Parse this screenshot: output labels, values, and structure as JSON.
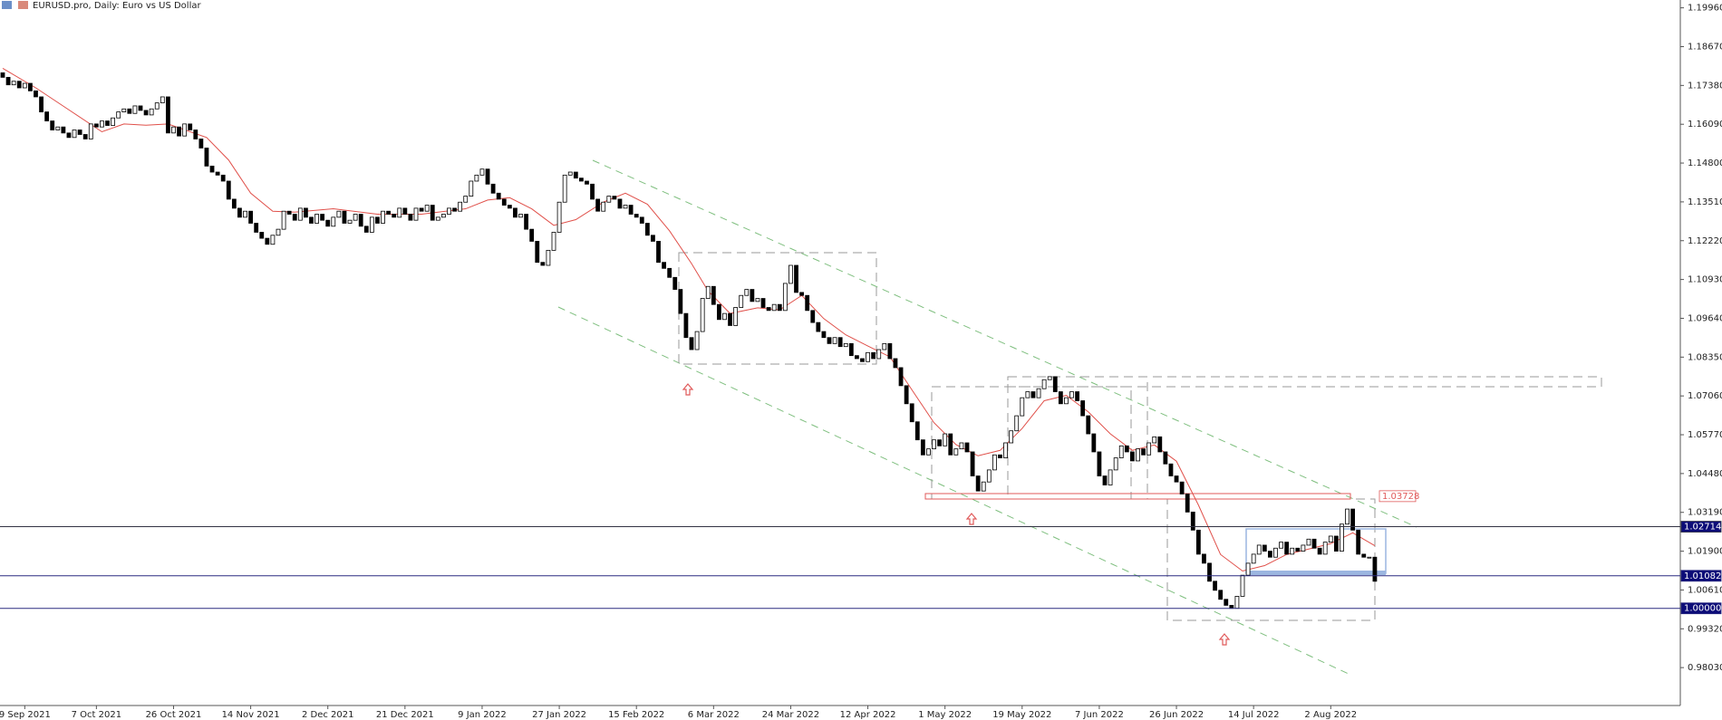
{
  "chart_data": {
    "type": "candlestick",
    "title": "EURUSD.pro, Daily:  Euro vs US Dollar",
    "categories": [
      null,
      null,
      null,
      null,
      "9 Sep 2021",
      null,
      null,
      null,
      null,
      null,
      null,
      null,
      null,
      null,
      null,
      null,
      null,
      "7 Oct 2021",
      null,
      null,
      null,
      null,
      null,
      null,
      null,
      null,
      null,
      null,
      null,
      null,
      null,
      "26 Oct 2021",
      null,
      null,
      null,
      null,
      null,
      null,
      null,
      null,
      null,
      null,
      null,
      null,
      null,
      "14 Nov 2021",
      null,
      null,
      null,
      null,
      null,
      null,
      null,
      null,
      null,
      null,
      null,
      null,
      null,
      "2 Dec 2021",
      null,
      null,
      null,
      null,
      null,
      null,
      null,
      null,
      null,
      null,
      null,
      null,
      null,
      "21 Dec 2021",
      null,
      null,
      null,
      null,
      null,
      null,
      null,
      null,
      null,
      null,
      null,
      null,
      null,
      "9 Jan 2022",
      null,
      null,
      null,
      null,
      null,
      null,
      null,
      null,
      null,
      null,
      null,
      null,
      null,
      "27 Jan 2022",
      null,
      null,
      null,
      null,
      null,
      null,
      null,
      null,
      null,
      null,
      null,
      null,
      null,
      "15 Feb 2022",
      null,
      null,
      null,
      null,
      null,
      null,
      null,
      null,
      null,
      null,
      null,
      null,
      null,
      "6 Mar 2022",
      null,
      null,
      null,
      null,
      null,
      null,
      null,
      null,
      null,
      null,
      null,
      null,
      null,
      "24 Mar 2022",
      null,
      null,
      null,
      null,
      null,
      null,
      null,
      null,
      null,
      null,
      null,
      null,
      null,
      "12 Apr 2022",
      null,
      null,
      null,
      null,
      null,
      null,
      null,
      null,
      null,
      null,
      null,
      null,
      null,
      "1 May 2022",
      null,
      null,
      null,
      null,
      null,
      null,
      null,
      null,
      null,
      null,
      null,
      null,
      null,
      "19 May 2022",
      null,
      null,
      null,
      null,
      null,
      null,
      null,
      null,
      null,
      null,
      null,
      null,
      null,
      "7 Jun 2022",
      null,
      null,
      null,
      null,
      null,
      null,
      null,
      null,
      null,
      null,
      null,
      null,
      null,
      "26 Jun 2022",
      null,
      null,
      null,
      null,
      null,
      null,
      null,
      null,
      null,
      null,
      null,
      null,
      null,
      "14 Jul 2022",
      null,
      null,
      null,
      null,
      null,
      null,
      null,
      null,
      null,
      null,
      null,
      null,
      null,
      "2 Aug 2022",
      null,
      null,
      null,
      null,
      null,
      null,
      null,
      null
    ],
    "open": [
      1.178,
      1.1765,
      1.174,
      1.1752,
      1.173,
      1.1745,
      1.172,
      1.17,
      1.165,
      1.162,
      1.159,
      1.16,
      1.158,
      1.1565,
      1.159,
      1.1575,
      1.156,
      1.161,
      1.16,
      1.162,
      1.1605,
      1.163,
      1.165,
      1.166,
      1.1645,
      1.167,
      1.1655,
      1.164,
      1.166,
      1.168,
      1.17,
      1.158,
      1.16,
      1.157,
      1.161,
      1.159,
      1.156,
      1.153,
      1.147,
      1.145,
      1.144,
      1.142,
      1.136,
      1.133,
      1.13,
      1.132,
      1.128,
      1.125,
      1.123,
      1.121,
      1.124,
      1.126,
      1.132,
      1.131,
      1.129,
      1.133,
      1.13,
      1.128,
      1.131,
      1.129,
      1.127,
      1.13,
      1.132,
      1.128,
      1.129,
      1.131,
      1.127,
      1.125,
      1.13,
      1.128,
      1.132,
      1.131,
      1.13,
      1.133,
      1.131,
      1.129,
      1.133,
      1.132,
      1.134,
      1.129,
      1.13,
      1.131,
      1.133,
      1.132,
      1.135,
      1.137,
      1.142,
      1.144,
      1.146,
      1.141,
      1.138,
      1.136,
      1.134,
      1.133,
      1.13,
      1.131,
      1.126,
      1.122,
      1.115,
      1.114,
      1.119,
      1.125,
      1.135,
      1.144,
      1.145,
      1.143,
      1.142,
      1.141,
      1.136,
      1.132,
      1.135,
      1.137,
      1.136,
      1.133,
      1.134,
      1.131,
      1.13,
      1.128,
      1.124,
      1.122,
      1.115,
      1.113,
      1.11,
      1.106,
      1.098,
      1.09,
      1.086,
      1.092,
      1.103,
      1.107,
      1.101,
      1.096,
      1.098,
      1.094,
      1.1,
      1.104,
      1.106,
      1.102,
      1.103,
      1.1,
      1.099,
      1.101,
      1.099,
      1.108,
      1.114,
      1.105,
      1.104,
      1.099,
      1.095,
      1.092,
      1.09,
      1.088,
      1.09,
      1.087,
      1.088,
      1.084,
      1.083,
      1.082,
      1.085,
      1.083,
      1.086,
      1.088,
      1.083,
      1.08,
      1.074,
      1.068,
      1.062,
      1.056,
      1.051,
      1.053,
      1.056,
      1.054,
      1.058,
      1.051,
      1.053,
      1.055,
      1.052,
      1.044,
      1.039,
      1.042,
      1.046,
      1.051,
      1.05,
      1.055,
      1.059,
      1.064,
      1.07,
      1.072,
      1.07,
      1.073,
      1.076,
      1.077,
      1.072,
      1.068,
      1.07,
      1.072,
      1.069,
      1.064,
      1.058,
      1.052,
      1.044,
      1.041,
      1.046,
      1.05,
      1.054,
      1.052,
      1.049,
      1.053,
      1.051,
      1.055,
      1.057,
      1.052,
      1.048,
      1.044,
      1.042,
      1.038,
      1.032,
      1.026,
      1.018,
      1.015,
      1.009,
      1.006,
      1.003,
      1.001,
      1.0,
      1.004,
      1.011,
      1.015,
      1.018,
      1.021,
      1.019,
      1.017,
      1.02,
      1.022,
      1.018,
      1.02,
      1.019,
      1.021,
      1.023,
      1.02,
      1.018,
      1.022,
      1.024,
      1.019,
      1.028,
      1.033,
      1.026,
      1.018,
      1.017,
      1.017
    ],
    "close": [
      1.1765,
      1.174,
      1.1752,
      1.173,
      1.1745,
      1.172,
      1.17,
      1.165,
      1.162,
      1.159,
      1.16,
      1.158,
      1.1565,
      1.159,
      1.1575,
      1.156,
      1.161,
      1.16,
      1.162,
      1.1605,
      1.163,
      1.165,
      1.166,
      1.1645,
      1.167,
      1.1655,
      1.164,
      1.166,
      1.168,
      1.17,
      1.158,
      1.16,
      1.157,
      1.161,
      1.159,
      1.156,
      1.153,
      1.147,
      1.145,
      1.144,
      1.142,
      1.136,
      1.133,
      1.13,
      1.132,
      1.128,
      1.125,
      1.123,
      1.121,
      1.124,
      1.126,
      1.132,
      1.131,
      1.129,
      1.133,
      1.13,
      1.128,
      1.131,
      1.129,
      1.127,
      1.13,
      1.132,
      1.128,
      1.129,
      1.131,
      1.127,
      1.125,
      1.13,
      1.128,
      1.132,
      1.131,
      1.13,
      1.133,
      1.131,
      1.129,
      1.133,
      1.132,
      1.134,
      1.129,
      1.13,
      1.131,
      1.133,
      1.132,
      1.135,
      1.137,
      1.142,
      1.144,
      1.146,
      1.141,
      1.138,
      1.136,
      1.134,
      1.133,
      1.13,
      1.131,
      1.126,
      1.122,
      1.115,
      1.114,
      1.119,
      1.125,
      1.135,
      1.144,
      1.145,
      1.143,
      1.142,
      1.141,
      1.136,
      1.132,
      1.135,
      1.137,
      1.136,
      1.133,
      1.134,
      1.131,
      1.13,
      1.128,
      1.124,
      1.122,
      1.115,
      1.113,
      1.11,
      1.106,
      1.098,
      1.09,
      1.086,
      1.092,
      1.103,
      1.107,
      1.101,
      1.096,
      1.098,
      1.094,
      1.1,
      1.104,
      1.106,
      1.102,
      1.103,
      1.1,
      1.099,
      1.101,
      1.099,
      1.108,
      1.114,
      1.105,
      1.104,
      1.099,
      1.095,
      1.092,
      1.09,
      1.088,
      1.09,
      1.087,
      1.088,
      1.084,
      1.083,
      1.082,
      1.085,
      1.083,
      1.086,
      1.088,
      1.083,
      1.08,
      1.074,
      1.068,
      1.062,
      1.056,
      1.051,
      1.053,
      1.056,
      1.054,
      1.058,
      1.051,
      1.053,
      1.055,
      1.052,
      1.044,
      1.039,
      1.042,
      1.046,
      1.051,
      1.05,
      1.055,
      1.059,
      1.064,
      1.07,
      1.072,
      1.07,
      1.073,
      1.076,
      1.077,
      1.072,
      1.068,
      1.07,
      1.072,
      1.069,
      1.064,
      1.058,
      1.052,
      1.044,
      1.041,
      1.046,
      1.05,
      1.054,
      1.052,
      1.049,
      1.053,
      1.051,
      1.055,
      1.057,
      1.052,
      1.048,
      1.044,
      1.042,
      1.038,
      1.032,
      1.026,
      1.018,
      1.015,
      1.009,
      1.006,
      1.003,
      1.001,
      1.0,
      1.004,
      1.011,
      1.015,
      1.018,
      1.021,
      1.019,
      1.017,
      1.02,
      1.022,
      1.018,
      1.02,
      1.019,
      1.021,
      1.023,
      1.02,
      1.018,
      1.022,
      1.024,
      1.019,
      1.028,
      1.033,
      1.026,
      1.018,
      1.017,
      1.017,
      1.009
    ],
    "up_color": "#ffffff",
    "down_color": "#000000",
    "ma": {
      "color": "#e0504a",
      "x": [
        0,
        6,
        12,
        18,
        22,
        26,
        30,
        37,
        41,
        45,
        49,
        53,
        60,
        68,
        76,
        84,
        88,
        92,
        96,
        100,
        104,
        109,
        113,
        117,
        121,
        125,
        128,
        132,
        137,
        141,
        145,
        149,
        153,
        157,
        161,
        165,
        169,
        173,
        177,
        181,
        185,
        189,
        193,
        197,
        201,
        205,
        209,
        213,
        217,
        221,
        225,
        229,
        233,
        237,
        241,
        245,
        249
      ],
      "values": [
        1.1795,
        1.173,
        1.1657,
        1.1584,
        1.161,
        1.1606,
        1.161,
        1.1565,
        1.149,
        1.138,
        1.132,
        1.1317,
        1.1328,
        1.131,
        1.131,
        1.1328,
        1.1357,
        1.1365,
        1.1328,
        1.1273,
        1.1292,
        1.135,
        1.138,
        1.1343,
        1.1255,
        1.1146,
        1.1055,
        1.098,
        1.0999,
        1.0992,
        1.104,
        1.0963,
        1.0909,
        1.0872,
        1.0836,
        1.0726,
        1.0617,
        1.0544,
        1.0507,
        1.0525,
        1.0598,
        1.069,
        1.0708,
        1.0653,
        1.058,
        1.0525,
        1.0543,
        1.0489,
        1.0343,
        1.0179,
        1.0124,
        1.0142,
        1.0179,
        1.0197,
        1.0215,
        1.0251,
        1.0208
      ]
    },
    "levels": [
      {
        "value": 1.03728,
        "color": "#e05a5a",
        "full_width": false,
        "label_at": "chart",
        "label_bg": "#ffffff",
        "label_color": "#e05a5a"
      },
      {
        "value": 1.02714,
        "color": "#333344",
        "full_width": true,
        "label_at": "axis",
        "label_bg": "#0c0c78",
        "label_color": "#ffffff"
      },
      {
        "value": 1.01082,
        "color": "#2a2a80",
        "full_width": true,
        "label_at": "axis",
        "label_bg": "#0c0c78",
        "label_color": "#ffffff"
      },
      {
        "value": 1,
        "label": "1.00000",
        "color": "#2a2a80",
        "full_width": true,
        "label_at": "axis",
        "label_bg": "#0c0c78",
        "label_color": "#ffffff"
      }
    ],
    "ylim": [
      0.9677,
      1.2022
    ],
    "yticks": [
      {
        "value": 1.1996,
        "label": "1.19960"
      },
      {
        "value": 1.1867,
        "label": "1.18670"
      },
      {
        "value": 1.1738,
        "label": "1.17380"
      },
      {
        "value": 1.1609,
        "label": "1.16090"
      },
      {
        "value": 1.148,
        "label": "1.14800"
      },
      {
        "value": 1.1351,
        "label": "1.13510"
      },
      {
        "value": 1.1222,
        "label": "1.12220"
      },
      {
        "value": 1.1093,
        "label": "1.10930"
      },
      {
        "value": 1.0964,
        "label": "1.09640"
      },
      {
        "value": 1.0835,
        "label": "1.08350"
      },
      {
        "value": 1.0706,
        "label": "1.07060"
      },
      {
        "value": 1.0577,
        "label": "1.05770"
      },
      {
        "value": 1.0448,
        "label": "1.04480"
      },
      {
        "value": 1.0319,
        "label": "1.03190"
      },
      {
        "value": 1.019,
        "label": "1.01900"
      },
      {
        "value": 1.0061,
        "label": "1.00610"
      },
      {
        "value": 0.9932,
        "label": "0.99320"
      },
      {
        "value": 0.9803,
        "label": "0.98030"
      }
    ]
  }
}
